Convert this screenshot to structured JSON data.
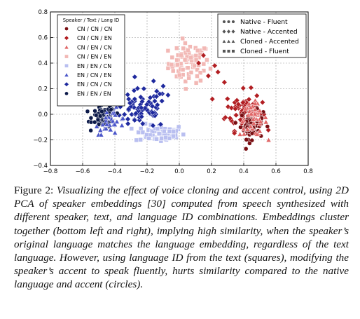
{
  "chart_data": {
    "type": "scatter",
    "xlim": [
      -0.8,
      0.8
    ],
    "ylim": [
      -0.4,
      0.8
    ],
    "xticks": [
      "−0.8",
      "−0.6",
      "−0.4",
      "−0.2",
      "0.0",
      "0.2",
      "0.4",
      "0.6",
      "0.8"
    ],
    "xtick_values": [
      -0.8,
      -0.6,
      -0.4,
      -0.2,
      0.0,
      0.2,
      0.4,
      0.6,
      0.8
    ],
    "yticks": [
      "−0.4",
      "−0.2",
      "0.0",
      "0.2",
      "0.4",
      "0.6",
      "0.8"
    ],
    "ytick_values": [
      -0.4,
      -0.2,
      0.0,
      0.2,
      0.4,
      0.6,
      0.8
    ],
    "grid": true,
    "legend_left": {
      "placement": "top-left",
      "title": "Speaker / Text / Lang ID",
      "entries": [
        {
          "label": "CN / CN / CN",
          "marker": "circle",
          "color": "#7a0f13"
        },
        {
          "label": "CN / CN / EN",
          "marker": "diamond",
          "color": "#b21e22"
        },
        {
          "label": "CN / EN / CN",
          "marker": "triangle",
          "color": "#e06666"
        },
        {
          "label": "CN / EN / EN",
          "marker": "square",
          "color": "#f2b8b5"
        },
        {
          "label": "EN / EN / CN",
          "marker": "square",
          "color": "#b9bff0"
        },
        {
          "label": "EN / CN / EN",
          "marker": "triangle",
          "color": "#4a55c9"
        },
        {
          "label": "EN / CN / CN",
          "marker": "diamond",
          "color": "#1f2a9e"
        },
        {
          "label": "EN / EN / EN",
          "marker": "circle",
          "color": "#0d1a4a"
        }
      ]
    },
    "legend_right": {
      "placement": "top-right",
      "entries": [
        {
          "label": "Native - Fluent",
          "marker": "circle"
        },
        {
          "label": "Native - Accented",
          "marker": "diamond"
        },
        {
          "label": "Cloned - Accented",
          "marker": "triangle"
        },
        {
          "label": "Cloned - Fluent",
          "marker": "square"
        }
      ]
    },
    "clusters": [
      {
        "group": "CN / CN / CN",
        "marker": "circle",
        "color": "#7a0f13",
        "center": [
          0.45,
          -0.08
        ],
        "spread": [
          0.05,
          0.08
        ],
        "count": 70
      },
      {
        "group": "CN / CN / EN",
        "marker": "diamond",
        "color": "#b21e22",
        "center": [
          0.4,
          0.03
        ],
        "spread": [
          0.08,
          0.11
        ],
        "count": 75
      },
      {
        "group": "CN / EN / CN",
        "marker": "triangle",
        "color": "#e06666",
        "center": [
          0.46,
          -0.04
        ],
        "spread": [
          0.06,
          0.09
        ],
        "count": 45
      },
      {
        "group": "CN / EN / EN",
        "marker": "square",
        "color": "#f2b8b5",
        "center": [
          0.06,
          0.4
        ],
        "spread": [
          0.09,
          0.11
        ],
        "count": 80
      },
      {
        "group": "EN / EN / CN",
        "marker": "square",
        "color": "#b9bff0",
        "center": [
          -0.12,
          -0.15
        ],
        "spread": [
          0.11,
          0.05
        ],
        "count": 65
      },
      {
        "group": "EN / CN / EN",
        "marker": "triangle",
        "color": "#4a55c9",
        "center": [
          -0.42,
          -0.06
        ],
        "spread": [
          0.07,
          0.07
        ],
        "count": 30
      },
      {
        "group": "EN / CN / CN",
        "marker": "diamond",
        "color": "#1f2a9e",
        "center": [
          -0.24,
          0.04
        ],
        "spread": [
          0.12,
          0.11
        ],
        "count": 80
      },
      {
        "group": "EN / EN / EN",
        "marker": "circle",
        "color": "#0d1a4a",
        "center": [
          -0.47,
          -0.02
        ],
        "spread": [
          0.05,
          0.06
        ],
        "count": 70
      }
    ],
    "extra_points": [
      {
        "group": "CN / CN / EN",
        "marker": "diamond",
        "color": "#b21e22",
        "points": [
          [
            0.15,
            0.46
          ],
          [
            0.12,
            0.4
          ],
          [
            0.22,
            0.38
          ],
          [
            0.24,
            0.33
          ],
          [
            0.18,
            0.3
          ],
          [
            0.28,
            0.25
          ]
        ]
      },
      {
        "group": "EN / CN / CN",
        "marker": "diamond",
        "color": "#1f2a9e",
        "points": [
          [
            -0.16,
            0.26
          ],
          [
            -0.1,
            0.22
          ],
          [
            -0.22,
            0.2
          ],
          [
            -0.14,
            0.18
          ],
          [
            -0.07,
            0.15
          ]
        ]
      }
    ]
  },
  "caption": {
    "lead": "Figure 2: ",
    "body": "Visualizing the effect of voice cloning and accent control, using 2D PCA of speaker embeddings [30] computed from speech synthesized with different speaker, text, and language ID combinations. Embeddings cluster together (bottom left and right), implying high similarity, when the speaker’s original language matches the language embedding, regardless of the text language. However, using language ID from the text (squares), modifying the speaker’s accent to speak fluently, hurts similarity compared to the native language and accent (circles)."
  }
}
